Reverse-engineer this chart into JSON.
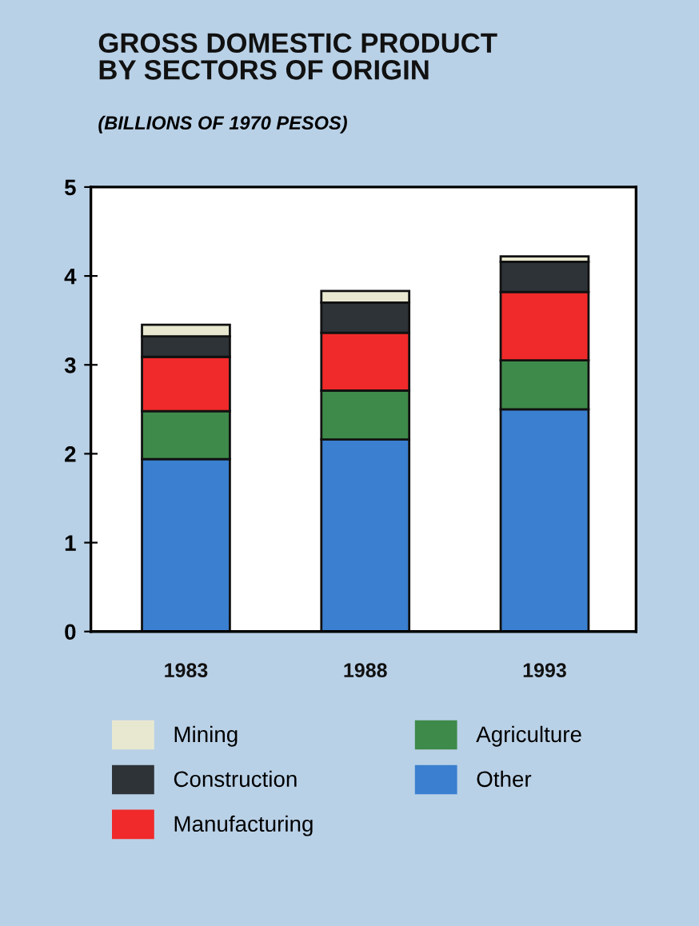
{
  "chart_data": {
    "type": "bar",
    "title": "GROSS DOMESTIC PRODUCT\nBY SECTORS OF ORIGIN",
    "subtitle": "(BILLIONS OF 1970 PESOS)",
    "categories": [
      "1983",
      "1988",
      "1993"
    ],
    "stacked": true,
    "series": [
      {
        "name": "Other",
        "color": "#3a7fd0",
        "values": [
          1.94,
          2.16,
          2.5
        ]
      },
      {
        "name": "Agriculture",
        "color": "#3e8a4a",
        "values": [
          0.54,
          0.55,
          0.55
        ]
      },
      {
        "name": "Manufacturing",
        "color": "#f02a2a",
        "values": [
          0.61,
          0.65,
          0.77
        ]
      },
      {
        "name": "Construction",
        "color": "#2e3338",
        "values": [
          0.23,
          0.34,
          0.34
        ]
      },
      {
        "name": "Mining",
        "color": "#e8e8d0",
        "values": [
          0.13,
          0.13,
          0.06
        ]
      }
    ],
    "ylim": [
      0,
      5
    ],
    "yticks": [
      0,
      1,
      2,
      3,
      4,
      5
    ],
    "grid": false,
    "legend": "bottom"
  }
}
